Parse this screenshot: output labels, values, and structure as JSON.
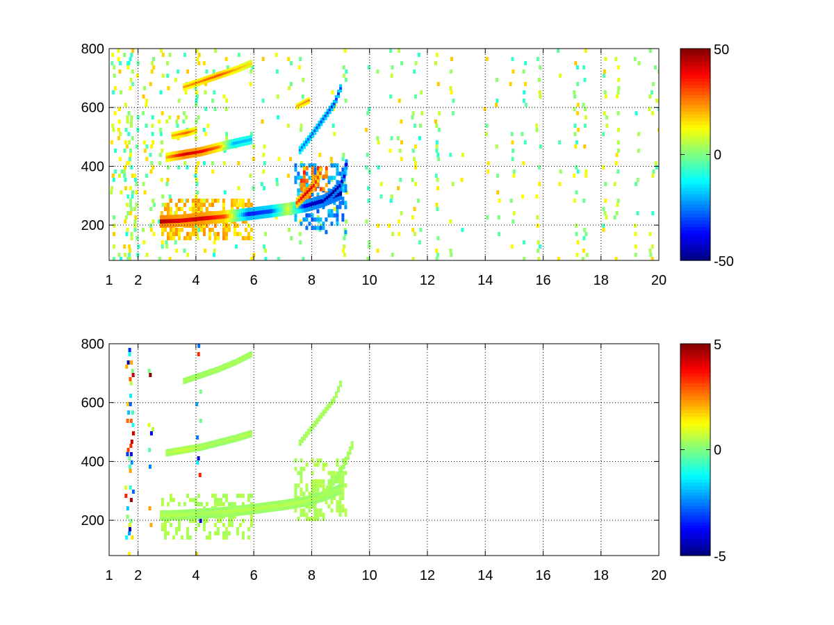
{
  "chart_data": [
    {
      "type": "heatmap",
      "title": "",
      "xlabel": "",
      "ylabel": "",
      "xlim": [
        1,
        20
      ],
      "ylim": [
        80,
        800
      ],
      "x_ticks": [
        "1",
        "2",
        "4",
        "6",
        "8",
        "10",
        "12",
        "14",
        "16",
        "18",
        "20"
      ],
      "y_ticks": [
        "200",
        "400",
        "600",
        "800"
      ],
      "grid": true,
      "grid_style": "dotted",
      "colormap": "jet",
      "clim": [
        -50,
        50
      ],
      "colorbar_ticks": [
        "50",
        "0",
        "-50"
      ],
      "noise_columns": [
        {
          "x": 1.1,
          "density": 0.35
        },
        {
          "x": 1.35,
          "density": 0.4
        },
        {
          "x": 1.55,
          "density": 0.45
        },
        {
          "x": 1.7,
          "density": 0.5
        },
        {
          "x": 1.9,
          "density": 0.35
        },
        {
          "x": 2.2,
          "density": 0.35
        },
        {
          "x": 2.45,
          "density": 0.4
        },
        {
          "x": 2.75,
          "density": 0.35
        },
        {
          "x": 3.0,
          "density": 0.3
        },
        {
          "x": 3.3,
          "density": 0.3
        },
        {
          "x": 3.6,
          "density": 0.35
        },
        {
          "x": 4.0,
          "density": 0.35
        },
        {
          "x": 4.3,
          "density": 0.3
        },
        {
          "x": 4.6,
          "density": 0.25
        },
        {
          "x": 5.0,
          "density": 0.25
        },
        {
          "x": 5.4,
          "density": 0.2
        },
        {
          "x": 5.9,
          "density": 0.2
        },
        {
          "x": 6.3,
          "density": 0.25
        },
        {
          "x": 6.8,
          "density": 0.2
        },
        {
          "x": 7.2,
          "density": 0.2
        },
        {
          "x": 7.6,
          "density": 0.25
        },
        {
          "x": 8.2,
          "density": 0.2
        },
        {
          "x": 8.7,
          "density": 0.2
        },
        {
          "x": 9.1,
          "density": 0.25
        },
        {
          "x": 9.9,
          "density": 0.3
        },
        {
          "x": 10.3,
          "density": 0.2
        },
        {
          "x": 10.7,
          "density": 0.3
        },
        {
          "x": 11.0,
          "density": 0.25
        },
        {
          "x": 11.5,
          "density": 0.35
        },
        {
          "x": 11.7,
          "density": 0.2
        },
        {
          "x": 12.3,
          "density": 0.3
        },
        {
          "x": 12.8,
          "density": 0.2
        },
        {
          "x": 13.2,
          "density": 0.15
        },
        {
          "x": 14.0,
          "density": 0.2
        },
        {
          "x": 14.4,
          "density": 0.2
        },
        {
          "x": 14.9,
          "density": 0.2
        },
        {
          "x": 15.3,
          "density": 0.15
        },
        {
          "x": 15.8,
          "density": 0.3
        },
        {
          "x": 16.5,
          "density": 0.15
        },
        {
          "x": 17.1,
          "density": 0.45
        },
        {
          "x": 17.4,
          "density": 0.4
        },
        {
          "x": 18.1,
          "density": 0.35
        },
        {
          "x": 18.5,
          "density": 0.3
        },
        {
          "x": 19.2,
          "density": 0.2
        },
        {
          "x": 19.7,
          "density": 0.3
        },
        {
          "x": 19.9,
          "density": 0.2
        }
      ],
      "tracks": [
        {
          "x": [
            2.8,
            3.5,
            4.2,
            5.0,
            5.8,
            6.6,
            7.2,
            7.8,
            8.4,
            9.0
          ],
          "y": [
            205,
            208,
            215,
            222,
            230,
            240,
            248,
            258,
            275,
            300
          ],
          "values": [
            45,
            40,
            42,
            30,
            -35,
            -30,
            10,
            -40,
            -45,
            -48
          ],
          "width": 12
        },
        {
          "x": [
            8.4,
            8.7,
            9.0,
            9.15,
            9.2
          ],
          "y": [
            275,
            300,
            330,
            365,
            400
          ],
          "values": [
            -45,
            -48,
            -45,
            -40,
            -40
          ],
          "width": 10
        },
        {
          "x": [
            7.5,
            7.8,
            8.1,
            8.3
          ],
          "y": [
            270,
            300,
            330,
            370
          ],
          "values": [
            30,
            42,
            35,
            28
          ],
          "width": 10
        },
        {
          "x": [
            3.0,
            3.6,
            4.2,
            4.8,
            5.3,
            5.9
          ],
          "y": [
            425,
            435,
            445,
            460,
            472,
            485
          ],
          "values": [
            20,
            42,
            38,
            25,
            -20,
            -18
          ],
          "width": 9
        },
        {
          "x": [
            3.2,
            3.7,
            4.0
          ],
          "y": [
            500,
            510,
            518
          ],
          "values": [
            20,
            28,
            18
          ],
          "width": 7
        },
        {
          "x": [
            7.6,
            8.0,
            8.4,
            8.8,
            9.0
          ],
          "y": [
            450,
            500,
            555,
            610,
            660
          ],
          "values": [
            -25,
            -28,
            -30,
            -32,
            -30
          ],
          "width": 8
        },
        {
          "x": [
            3.6,
            4.2,
            4.8,
            5.4,
            5.9
          ],
          "y": [
            665,
            685,
            705,
            725,
            745
          ],
          "values": [
            22,
            25,
            30,
            20,
            15
          ],
          "width": 7
        },
        {
          "x": [
            7.5,
            7.9
          ],
          "y": [
            600,
            620
          ],
          "values": [
            20,
            25
          ],
          "width": 6
        }
      ],
      "patches": [
        {
          "x": [
            2.8,
            5.9
          ],
          "y": [
            150,
            290
          ],
          "value": 20,
          "density": 0.5
        },
        {
          "x": [
            7.4,
            9.2
          ],
          "y": [
            180,
            410
          ],
          "value": -25,
          "density": 0.4
        },
        {
          "x": [
            7.6,
            8.5
          ],
          "y": [
            300,
            400
          ],
          "value": 30,
          "density": 0.45
        }
      ]
    },
    {
      "type": "heatmap",
      "title": "",
      "xlabel": "",
      "ylabel": "",
      "xlim": [
        1,
        20
      ],
      "ylim": [
        80,
        800
      ],
      "x_ticks": [
        "1",
        "2",
        "4",
        "6",
        "8",
        "10",
        "12",
        "14",
        "16",
        "18",
        "20"
      ],
      "y_ticks": [
        "200",
        "400",
        "600",
        "800"
      ],
      "grid": true,
      "grid_style": "dotted",
      "colormap": "jet",
      "clim": [
        -5,
        5
      ],
      "colorbar_ticks": [
        "5",
        "0",
        "-5"
      ],
      "noise_columns": [
        {
          "x": 1.6,
          "density": 0.45,
          "mixed": true
        },
        {
          "x": 1.72,
          "density": 0.55,
          "mixed": true
        },
        {
          "x": 2.4,
          "density": 0.2,
          "mixed": true
        },
        {
          "x": 4.05,
          "density": 0.25,
          "mixed": true
        }
      ],
      "tracks": [
        {
          "x": [
            2.8,
            3.5,
            4.2,
            5.0,
            5.8,
            6.6,
            7.2,
            7.8,
            8.4,
            9.0
          ],
          "y": [
            210,
            212,
            217,
            222,
            230,
            240,
            248,
            258,
            275,
            300
          ],
          "values": [
            0.5,
            0.5,
            0.4,
            0.5,
            0.5,
            0.5,
            0.5,
            0.5,
            0.4,
            0.4
          ],
          "width": 10
        },
        {
          "x": [
            8.4,
            8.7,
            9.0,
            9.2,
            9.4
          ],
          "y": [
            280,
            320,
            360,
            400,
            450
          ],
          "values": [
            0.5,
            0.5,
            0.4,
            0.5,
            0.5
          ],
          "width": 8
        },
        {
          "x": [
            3.0,
            3.6,
            4.2,
            4.8,
            5.4,
            5.9
          ],
          "y": [
            425,
            435,
            445,
            460,
            475,
            490
          ],
          "values": [
            0.5,
            0.8,
            0.5,
            0.4,
            0.5,
            0.5
          ],
          "width": 7
        },
        {
          "x": [
            7.6,
            8.0,
            8.4,
            8.8,
            9.0
          ],
          "y": [
            460,
            510,
            560,
            610,
            660
          ],
          "values": [
            0.5,
            0.5,
            0.5,
            0.5,
            0.5
          ],
          "width": 6
        },
        {
          "x": [
            3.6,
            4.2,
            4.8,
            5.4,
            5.9
          ],
          "y": [
            670,
            690,
            710,
            735,
            760
          ],
          "values": [
            0.5,
            0.4,
            0.5,
            0.5,
            0.5
          ],
          "width": 6
        }
      ],
      "patches": [
        {
          "x": [
            2.8,
            5.9
          ],
          "y": [
            140,
            290
          ],
          "value": 0.5,
          "density": 0.4
        },
        {
          "x": [
            7.4,
            9.2
          ],
          "y": [
            200,
            410
          ],
          "value": 0.5,
          "density": 0.45
        }
      ]
    }
  ]
}
